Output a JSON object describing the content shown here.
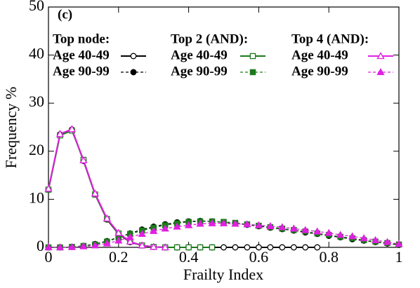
{
  "chart_data": {
    "type": "line",
    "annotation": "(c)",
    "x_label": "Frailty Index",
    "y_label": "Frequency %",
    "xlim": [
      0,
      1
    ],
    "ylim": [
      0,
      50
    ],
    "xticks": [
      0,
      0.2,
      0.4,
      0.6,
      0.8,
      1
    ],
    "yticks": [
      0,
      10,
      20,
      30,
      40,
      50
    ],
    "legend_groups": [
      "Top node:",
      "Top 2 (AND):",
      "Top 4 (AND):"
    ],
    "x": [
      0,
      0.033,
      0.067,
      0.1,
      0.133,
      0.167,
      0.2,
      0.233,
      0.267,
      0.3,
      0.333,
      0.367,
      0.4,
      0.433,
      0.467,
      0.5,
      0.533,
      0.567,
      0.6,
      0.633,
      0.667,
      0.7,
      0.733,
      0.767,
      0.8,
      0.833,
      0.867,
      0.9,
      0.933,
      0.967,
      1
    ],
    "series": [
      {
        "name": "Age 40-49",
        "color": "#000000",
        "marker": "circle",
        "filled": false,
        "dashed": false,
        "values": [
          12,
          23.5,
          24.5,
          18,
          11,
          5.8,
          2.8,
          1.1,
          0.4,
          0.1,
          0,
          0,
          0,
          0,
          0,
          0,
          0,
          0,
          0,
          0,
          0,
          0,
          0,
          0,
          null,
          null,
          null,
          null,
          null,
          null,
          null
        ]
      },
      {
        "name": "Age 90-99",
        "color": "#000000",
        "marker": "circle",
        "filled": true,
        "dashed": true,
        "values": [
          0,
          0,
          0.1,
          0.3,
          0.7,
          1.3,
          2.1,
          2.9,
          3.7,
          4.3,
          4.8,
          5.2,
          5.4,
          5.5,
          5.4,
          5.2,
          5.0,
          4.7,
          4.4,
          4.1,
          3.8,
          3.5,
          3.1,
          2.8,
          2.4,
          2.1,
          1.7,
          1.4,
          1.1,
          0.8,
          0.5
        ]
      },
      {
        "name": "Age 40-49",
        "color": "#1a7a1a",
        "marker": "square",
        "filled": false,
        "dashed": false,
        "values": [
          12,
          23.3,
          24.3,
          18.2,
          11,
          5.9,
          2.9,
          1.2,
          0.4,
          0.1,
          0,
          0,
          0,
          0,
          0,
          null,
          null,
          null,
          null,
          null,
          null,
          null,
          null,
          null,
          null,
          null,
          null,
          null,
          null,
          null,
          null
        ]
      },
      {
        "name": "Age 90-99",
        "color": "#1a7a1a",
        "marker": "square",
        "filled": true,
        "dashed": true,
        "values": [
          0,
          0,
          0.1,
          0.3,
          0.6,
          1.2,
          2.0,
          2.8,
          3.5,
          4.1,
          4.6,
          5.0,
          5.3,
          5.4,
          5.4,
          5.3,
          5.1,
          4.8,
          4.5,
          4.2,
          3.9,
          3.6,
          3.3,
          2.9,
          2.6,
          2.2,
          1.9,
          1.5,
          1.2,
          0.9,
          0.6
        ]
      },
      {
        "name": "Age 40-49",
        "color": "#e020e0",
        "marker": "triangle",
        "filled": false,
        "dashed": false,
        "values": [
          12.2,
          23.6,
          24.6,
          18.1,
          11.2,
          6.0,
          3.0,
          1.2,
          0.4,
          0.1,
          0,
          null,
          null,
          null,
          null,
          null,
          null,
          null,
          null,
          null,
          null,
          null,
          null,
          null,
          null,
          null,
          null,
          null,
          null,
          null,
          null
        ]
      },
      {
        "name": "Age 90-99",
        "color": "#e020e0",
        "marker": "triangle",
        "filled": true,
        "dashed": true,
        "values": [
          0,
          0,
          0.05,
          0.2,
          0.4,
          0.8,
          1.4,
          2.1,
          2.8,
          3.4,
          3.9,
          4.3,
          4.6,
          4.9,
          5.0,
          5.0,
          4.9,
          4.8,
          4.6,
          4.4,
          4.2,
          3.9,
          3.6,
          3.3,
          3.0,
          2.6,
          2.3,
          1.9,
          1.5,
          1.1,
          0.7
        ]
      }
    ]
  }
}
